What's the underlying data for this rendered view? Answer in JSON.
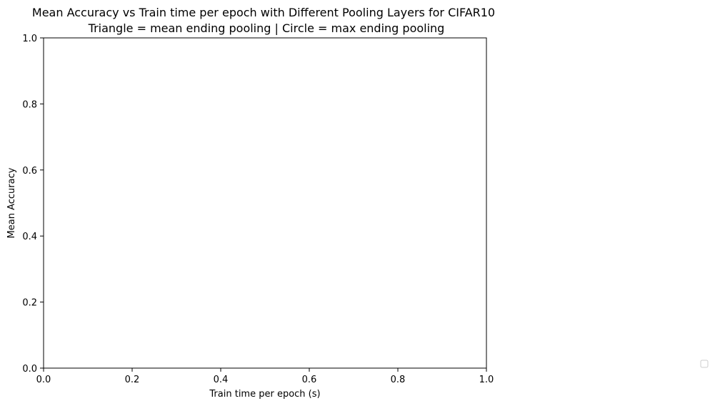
{
  "chart_data": {
    "type": "scatter",
    "title": "Mean Accuracy vs Train time per epoch with Different Pooling Layers for CIFAR10",
    "subtitle": "Triangle = mean ending pooling | Circle = max ending pooling",
    "xlabel": "Train time per epoch (s)",
    "ylabel": "Mean Accuracy",
    "xlim": [
      0.0,
      1.0
    ],
    "ylim": [
      0.0,
      1.0
    ],
    "x_ticks": [
      "0.0",
      "0.2",
      "0.4",
      "0.6",
      "0.8",
      "1.0"
    ],
    "y_ticks": [
      "0.0",
      "0.2",
      "0.4",
      "0.6",
      "0.8",
      "1.0"
    ],
    "series": [],
    "grid": false,
    "legend": {
      "placement": "outside-bottom-right",
      "entries": []
    }
  }
}
